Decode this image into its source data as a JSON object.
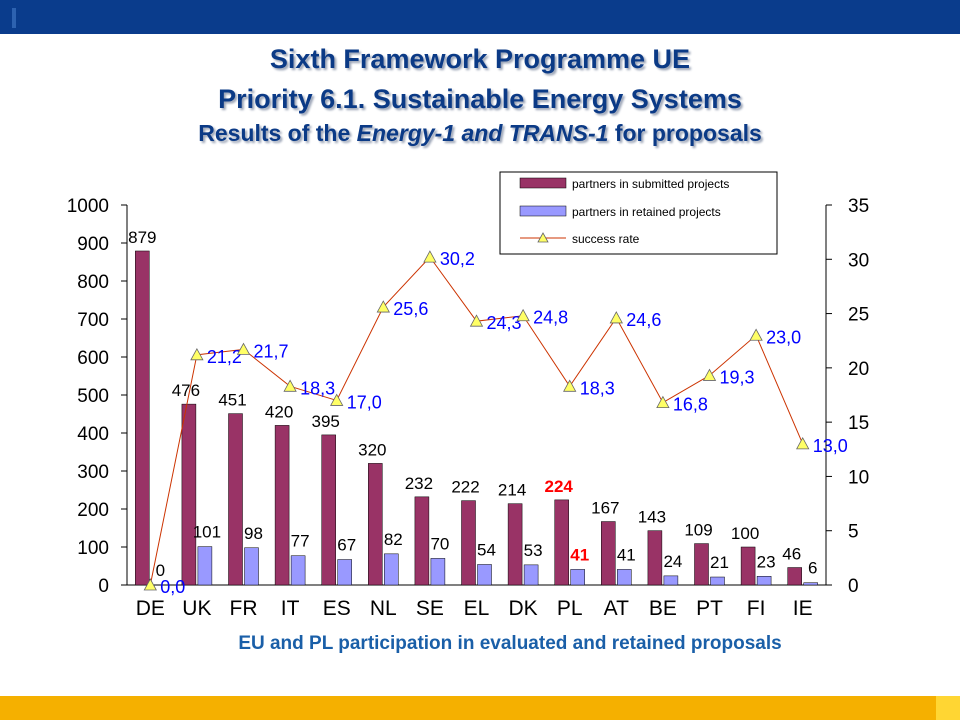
{
  "header": {
    "title_line1": "Sixth Framework Programme UE",
    "title_line2": "Priority 6.1. Sustainable Energy Systems",
    "title_line3_pre": "Results of the ",
    "title_line3_italic": "Energy-1 and TRANS-1",
    "title_line3_post": " for proposals"
  },
  "caption": "EU and PL participation in evaluated and retained proposals",
  "colors": {
    "header_bar": "#0a3c8c",
    "footer_bar": "#f5b000",
    "submitted_bar": "#993366",
    "retained_bar": "#9999ff",
    "success_line": "#cc3300",
    "success_marker": "#ffff66",
    "title_text": "#0b3a86",
    "highlight_text": "#ff0000",
    "rate_label_text": "#0000ff"
  },
  "chart_data": {
    "type": "bar",
    "categories": [
      "DE",
      "UK",
      "FR",
      "IT",
      "ES",
      "NL",
      "SE",
      "EL",
      "DK",
      "PL",
      "AT",
      "BE",
      "PT",
      "FI",
      "IE"
    ],
    "series": [
      {
        "name": "partners in submitted projects",
        "type": "bar",
        "axis": "left",
        "values": [
          879,
          476,
          451,
          420,
          395,
          320,
          232,
          222,
          214,
          224,
          167,
          143,
          109,
          100,
          46
        ],
        "labels": [
          "879",
          "476",
          "451",
          "420",
          "395",
          "320",
          "232",
          "222",
          "214",
          "224",
          "167",
          "143",
          "109",
          "100",
          "46"
        ]
      },
      {
        "name": "partners in retained projects",
        "type": "bar",
        "axis": "left",
        "values": [
          0,
          101,
          98,
          77,
          67,
          82,
          70,
          54,
          53,
          41,
          41,
          24,
          21,
          23,
          6
        ],
        "labels": [
          "0",
          "101",
          "98",
          "77",
          "67",
          "82",
          "70",
          "54",
          "53",
          "41",
          "41",
          "24",
          "21",
          "23",
          "6"
        ]
      },
      {
        "name": "success rate",
        "type": "line",
        "axis": "right",
        "values": [
          0.0,
          21.2,
          21.7,
          18.3,
          17.0,
          25.6,
          30.2,
          24.3,
          24.8,
          18.3,
          24.6,
          16.8,
          19.3,
          23.0,
          13.0
        ],
        "labels": [
          "0,0",
          "21,2",
          "21,7",
          "18,3",
          "17,0",
          "25,6",
          "30,2",
          "24,3",
          "24,8",
          "18,3",
          "24,6",
          "16,8",
          "19,3",
          "23,0",
          "13,0"
        ]
      }
    ],
    "highlight_category": "PL",
    "y_left": {
      "min": 0,
      "max": 1000,
      "ticks": [
        "0",
        "100",
        "200",
        "300",
        "400",
        "500",
        "600",
        "700",
        "800",
        "900",
        "1000"
      ]
    },
    "y_right": {
      "min": 0,
      "max": 35,
      "ticks": [
        "0",
        "5",
        "10",
        "15",
        "20",
        "25",
        "30",
        "35"
      ]
    },
    "grid": false,
    "legend_position": "top-right"
  }
}
